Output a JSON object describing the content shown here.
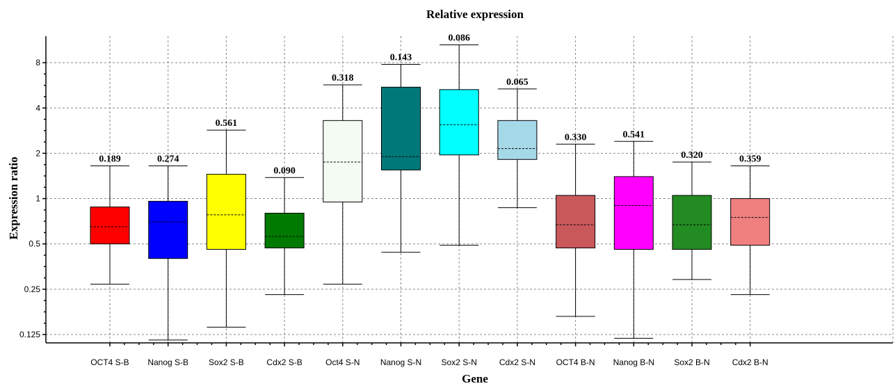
{
  "chart_data": {
    "type": "box",
    "title": "Relative expression",
    "xlabel": "Gene",
    "ylabel": "Expression ratio",
    "y_scale": "log2",
    "ylim": [
      0.11,
      12
    ],
    "y_ticks": [
      0.125,
      0.25,
      0.5,
      1,
      2,
      4,
      8
    ],
    "y_tick_labels": [
      "0.125",
      "0.25",
      "0.5",
      "1",
      "2",
      "4",
      "8"
    ],
    "grid": true,
    "categories": [
      "OCT4 S-B",
      "Nanog S-B",
      "Sox2 S-B",
      "Cdx2 S-B",
      "Oct4 S-N",
      "Nanog S-N",
      "Sox2 S-N",
      "Cdx2 S-N",
      "OCT4 B-N",
      "Nanog B-N",
      "Sox2 B-N",
      "Cdx2 B-N"
    ],
    "boxes": [
      {
        "label": "OCT4 S-B",
        "min": 0.27,
        "q1": 0.5,
        "median": 0.65,
        "q3": 0.88,
        "max": 1.65,
        "p_value": "0.189",
        "color": "#ff0000"
      },
      {
        "label": "Nanog S-B",
        "min": 0.115,
        "q1": 0.4,
        "median": 0.7,
        "q3": 0.96,
        "max": 1.65,
        "p_value": "0.274",
        "color": "#0000ff"
      },
      {
        "label": "Sox2 S-B",
        "min": 0.14,
        "q1": 0.46,
        "median": 0.78,
        "q3": 1.45,
        "max": 2.85,
        "p_value": "0.561",
        "color": "#ffff00"
      },
      {
        "label": "Cdx2 S-B",
        "min": 0.23,
        "q1": 0.47,
        "median": 0.56,
        "q3": 0.8,
        "max": 1.38,
        "p_value": "0.090",
        "color": "#007a00"
      },
      {
        "label": "Oct4 S-N",
        "min": 0.27,
        "q1": 0.95,
        "median": 1.75,
        "q3": 3.3,
        "max": 5.7,
        "p_value": "0.318",
        "color": "#f4fbf2"
      },
      {
        "label": "Nanog S-N",
        "min": 0.44,
        "q1": 1.55,
        "median": 1.9,
        "q3": 5.5,
        "max": 7.8,
        "p_value": "0.143",
        "color": "#00787a"
      },
      {
        "label": "Sox2 S-N",
        "min": 0.49,
        "q1": 1.95,
        "median": 3.1,
        "q3": 5.3,
        "max": 10.5,
        "p_value": "0.086",
        "color": "#00ffff"
      },
      {
        "label": "Cdx2 S-N",
        "min": 0.87,
        "q1": 1.82,
        "median": 2.15,
        "q3": 3.3,
        "max": 5.35,
        "p_value": "0.065",
        "color": "#a6d9e8"
      },
      {
        "label": "OCT4 B-N",
        "min": 0.165,
        "q1": 0.47,
        "median": 0.67,
        "q3": 1.05,
        "max": 2.3,
        "p_value": "0.330",
        "color": "#c9585a"
      },
      {
        "label": "Nanog B-N",
        "min": 0.118,
        "q1": 0.46,
        "median": 0.9,
        "q3": 1.4,
        "max": 2.4,
        "p_value": "0.541",
        "color": "#ff00ff"
      },
      {
        "label": "Sox2 B-N",
        "min": 0.29,
        "q1": 0.46,
        "median": 0.67,
        "q3": 1.05,
        "max": 1.75,
        "p_value": "0.320",
        "color": "#228b22"
      },
      {
        "label": "Cdx2 B-N",
        "min": 0.23,
        "q1": 0.49,
        "median": 0.75,
        "q3": 1.0,
        "max": 1.65,
        "p_value": "0.359",
        "color": "#f08080"
      }
    ]
  }
}
